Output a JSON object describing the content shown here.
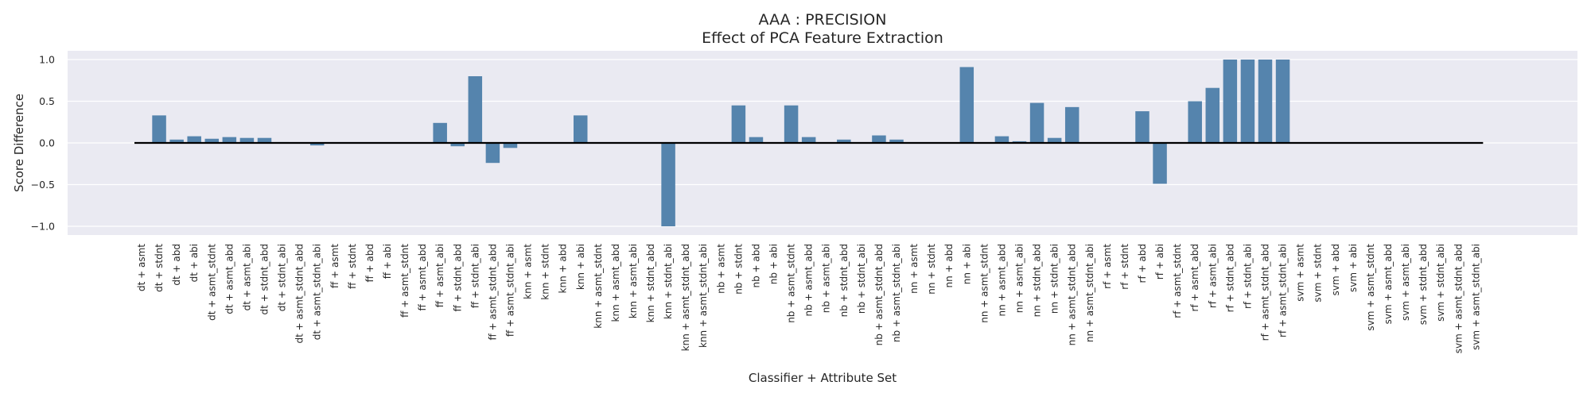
{
  "chart_data": {
    "type": "bar",
    "title": "AAA : PRECISION",
    "subtitle": "Effect of PCA Feature Extraction",
    "xlabel": "Classifier + Attribute Set",
    "ylabel": "Score Difference",
    "ylim": [
      -1.1,
      1.1
    ],
    "yticks": [
      1.0,
      0.5,
      0.0,
      -0.5,
      -1.0
    ],
    "ytick_labels": [
      "1.0",
      "0.5",
      "0.0",
      "−0.5",
      "−1.0"
    ],
    "grid": true,
    "bar_color": "#5584ad",
    "background_color": "#eaeaf2",
    "baseline_color": "#000000",
    "categories": [
      "dt + asmt",
      "dt + stdnt",
      "dt + abd",
      "dt + abi",
      "dt + asmt_stdnt",
      "dt + asmt_abd",
      "dt + asmt_abi",
      "dt + stdnt_abd",
      "dt + stdnt_abi",
      "dt + asmt_stdnt_abd",
      "dt + asmt_stdnt_abi",
      "ff + asmt",
      "ff + stdnt",
      "ff + abd",
      "ff + abi",
      "ff + asmt_stdnt",
      "ff + asmt_abd",
      "ff + asmt_abi",
      "ff + stdnt_abd",
      "ff + stdnt_abi",
      "ff + asmt_stdnt_abd",
      "ff + asmt_stdnt_abi",
      "knn + asmt",
      "knn + stdnt",
      "knn + abd",
      "knn + abi",
      "knn + asmt_stdnt",
      "knn + asmt_abd",
      "knn + asmt_abi",
      "knn + stdnt_abd",
      "knn + stdnt_abi",
      "knn + asmt_stdnt_abd",
      "knn + asmt_stdnt_abi",
      "nb + asmt",
      "nb + stdnt",
      "nb + abd",
      "nb + abi",
      "nb + asmt_stdnt",
      "nb + asmt_abd",
      "nb + asmt_abi",
      "nb + stdnt_abd",
      "nb + stdnt_abi",
      "nb + asmt_stdnt_abd",
      "nb + asmt_stdnt_abi",
      "nn + asmt",
      "nn + stdnt",
      "nn + abd",
      "nn + abi",
      "nn + asmt_stdnt",
      "nn + asmt_abd",
      "nn + asmt_abi",
      "nn + stdnt_abd",
      "nn + stdnt_abi",
      "nn + asmt_stdnt_abd",
      "nn + asmt_stdnt_abi",
      "rf + asmt",
      "rf + stdnt",
      "rf + abd",
      "rf + abi",
      "rf + asmt_stdnt",
      "rf + asmt_abd",
      "rf + asmt_abi",
      "rf + stdnt_abd",
      "rf + stdnt_abi",
      "rf + asmt_stdnt_abd",
      "rf + asmt_stdnt_abi",
      "svm + asmt",
      "svm + stdnt",
      "svm + abd",
      "svm + abi",
      "svm + asmt_stdnt",
      "svm + asmt_abd",
      "svm + asmt_abi",
      "svm + stdnt_abd",
      "svm + stdnt_abi",
      "svm + asmt_stdnt_abd",
      "svm + asmt_stdnt_abi"
    ],
    "values": [
      0,
      0.33,
      0.04,
      0.08,
      0.05,
      0.07,
      0.06,
      0.06,
      0.01,
      0,
      -0.03,
      0,
      0,
      0,
      0,
      0,
      0,
      0.24,
      -0.04,
      0.8,
      -0.24,
      -0.06,
      0,
      0,
      0,
      0.33,
      0,
      0,
      0,
      0,
      -1.0,
      0,
      0,
      0,
      0.45,
      0.07,
      0,
      0.45,
      0.07,
      0,
      0.04,
      0,
      0.09,
      0.04,
      0,
      0,
      0,
      0.91,
      0,
      0.08,
      0.02,
      0.48,
      0.06,
      0.43,
      0,
      0,
      0,
      0.38,
      -0.49,
      0,
      0.5,
      0.66,
      1.0,
      1.0,
      1.0,
      1.0,
      0,
      0,
      0,
      0,
      0,
      0,
      0,
      0,
      0,
      0,
      0
    ]
  }
}
